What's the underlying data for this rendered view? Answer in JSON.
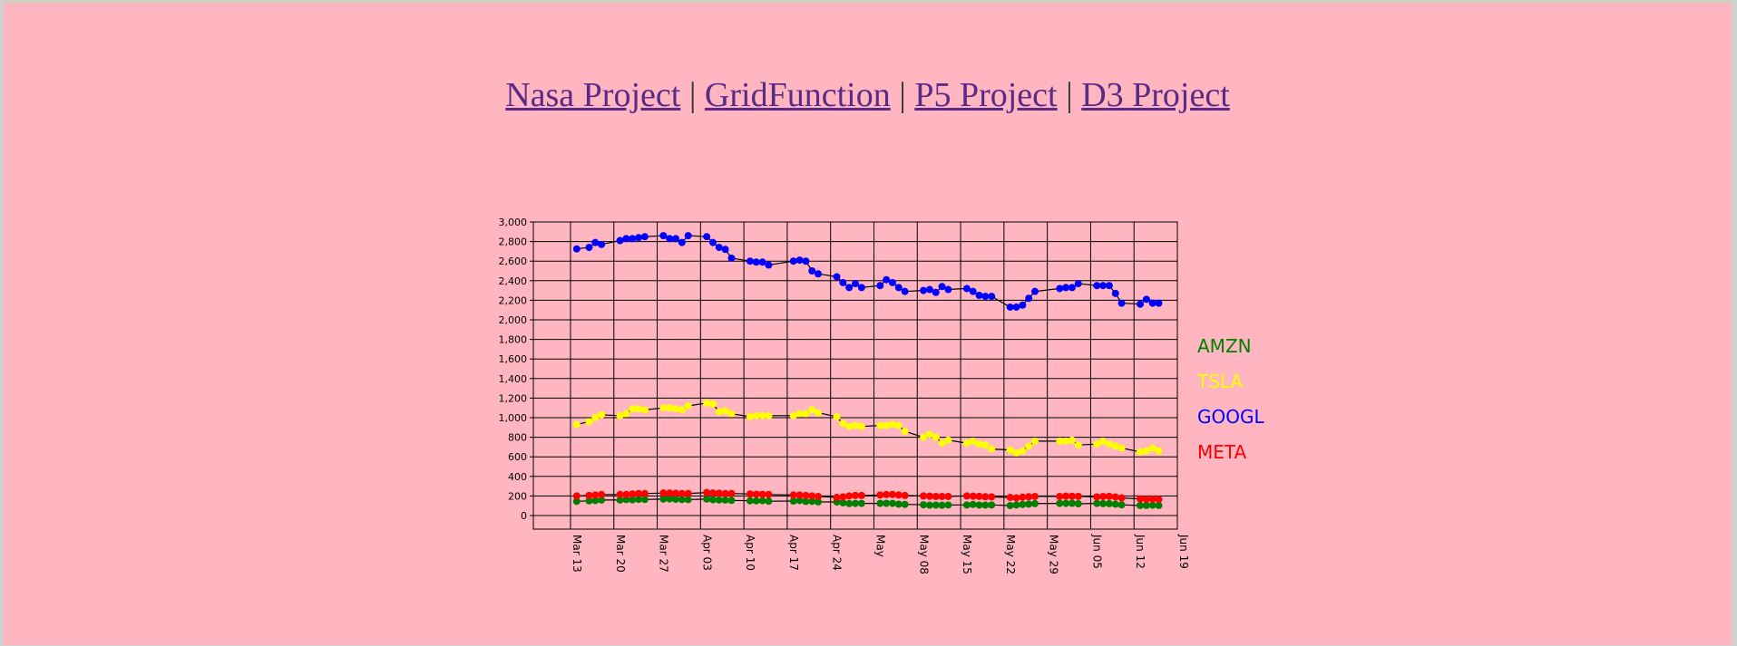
{
  "nav": {
    "links": [
      "Nasa Project",
      "GridFunction",
      "P5 Project",
      "D3 Project"
    ],
    "separator": "|"
  },
  "colors": {
    "background": "#ffb6c1",
    "link": "#5a2a86",
    "AMZN": "#008000",
    "TSLA": "#ffff00",
    "GOOGL": "#0000ff",
    "META": "#ff0000"
  },
  "chart_data": {
    "type": "line",
    "title": "",
    "xlabel": "",
    "ylabel": "",
    "ylim": [
      0,
      3000
    ],
    "xlim": [
      "2022-03-07",
      "2022-06-19"
    ],
    "y_ticks": [
      "0",
      "200",
      "400",
      "600",
      "800",
      "1,000",
      "1,200",
      "1,400",
      "1,600",
      "1,800",
      "2,000",
      "2,200",
      "2,400",
      "2,600",
      "2,800",
      "3,000"
    ],
    "x_ticks": [
      {
        "label": "Mar 13",
        "date": "2022-03-13"
      },
      {
        "label": "Mar 20",
        "date": "2022-03-20"
      },
      {
        "label": "Mar 27",
        "date": "2022-03-27"
      },
      {
        "label": "Apr 03",
        "date": "2022-04-03"
      },
      {
        "label": "Apr 10",
        "date": "2022-04-10"
      },
      {
        "label": "Apr 17",
        "date": "2022-04-17"
      },
      {
        "label": "Apr 24",
        "date": "2022-04-24"
      },
      {
        "label": "May",
        "date": "2022-05-01"
      },
      {
        "label": "May 08",
        "date": "2022-05-08"
      },
      {
        "label": "May 15",
        "date": "2022-05-15"
      },
      {
        "label": "May 22",
        "date": "2022-05-22"
      },
      {
        "label": "May 29",
        "date": "2022-05-29"
      },
      {
        "label": "Jun 05",
        "date": "2022-06-05"
      },
      {
        "label": "Jun 12",
        "date": "2022-06-12"
      },
      {
        "label": "Jun 19",
        "date": "2022-06-19"
      }
    ],
    "legend_position": "right",
    "grid": true,
    "x": [
      "2022-03-14",
      "2022-03-16",
      "2022-03-17",
      "2022-03-18",
      "2022-03-21",
      "2022-03-22",
      "2022-03-23",
      "2022-03-24",
      "2022-03-25",
      "2022-03-28",
      "2022-03-29",
      "2022-03-30",
      "2022-03-31",
      "2022-04-01",
      "2022-04-04",
      "2022-04-05",
      "2022-04-06",
      "2022-04-07",
      "2022-04-08",
      "2022-04-11",
      "2022-04-12",
      "2022-04-13",
      "2022-04-14",
      "2022-04-18",
      "2022-04-19",
      "2022-04-20",
      "2022-04-21",
      "2022-04-22",
      "2022-04-25",
      "2022-04-26",
      "2022-04-27",
      "2022-04-28",
      "2022-04-29",
      "2022-05-02",
      "2022-05-03",
      "2022-05-04",
      "2022-05-05",
      "2022-05-06",
      "2022-05-09",
      "2022-05-10",
      "2022-05-11",
      "2022-05-12",
      "2022-05-13",
      "2022-05-16",
      "2022-05-17",
      "2022-05-18",
      "2022-05-19",
      "2022-05-20",
      "2022-05-23",
      "2022-05-24",
      "2022-05-25",
      "2022-05-26",
      "2022-05-27",
      "2022-05-31",
      "2022-06-01",
      "2022-06-02",
      "2022-06-03",
      "2022-06-06",
      "2022-06-07",
      "2022-06-08",
      "2022-06-09",
      "2022-06-10",
      "2022-06-13",
      "2022-06-14",
      "2022-06-15",
      "2022-06-16"
    ],
    "series": [
      {
        "name": "AMZN",
        "values": [
          145,
          150,
          153,
          158,
          158,
          163,
          161,
          165,
          164,
          168,
          170,
          166,
          163,
          163,
          168,
          162,
          159,
          158,
          155,
          151,
          150,
          152,
          146,
          148,
          153,
          144,
          145,
          140,
          139,
          130,
          122,
          124,
          124,
          124,
          125,
          124,
          116,
          114,
          110,
          106,
          107,
          105,
          108,
          108,
          114,
          107,
          107,
          108,
          102,
          108,
          113,
          117,
          122,
          124,
          124,
          125,
          120,
          124,
          122,
          121,
          116,
          109,
          103,
          103,
          106,
          103
        ]
      },
      {
        "name": "TSLA",
        "values": [
          930,
          960,
          1000,
          1030,
          1020,
          1040,
          1090,
          1090,
          1080,
          1100,
          1100,
          1090,
          1080,
          1120,
          1150,
          1140,
          1060,
          1070,
          1040,
          1010,
          1020,
          1020,
          1020,
          1020,
          1040,
          1040,
          1080,
          1050,
          1010,
          940,
          910,
          920,
          910,
          920,
          920,
          930,
          920,
          860,
          800,
          830,
          800,
          740,
          770,
          740,
          760,
          730,
          720,
          680,
          670,
          640,
          660,
          710,
          760,
          760,
          760,
          770,
          720,
          730,
          760,
          730,
          710,
          690,
          650,
          660,
          690,
          660
        ]
      },
      {
        "name": "GOOGL",
        "values": [
          2725,
          2740,
          2790,
          2770,
          2810,
          2830,
          2830,
          2840,
          2850,
          2860,
          2830,
          2830,
          2790,
          2860,
          2850,
          2790,
          2740,
          2720,
          2630,
          2600,
          2590,
          2590,
          2560,
          2600,
          2610,
          2600,
          2500,
          2470,
          2440,
          2380,
          2330,
          2370,
          2330,
          2350,
          2410,
          2380,
          2330,
          2290,
          2300,
          2310,
          2280,
          2340,
          2310,
          2320,
          2290,
          2250,
          2240,
          2240,
          2130,
          2130,
          2150,
          2220,
          2290,
          2320,
          2330,
          2330,
          2370,
          2350,
          2350,
          2350,
          2270,
          2170,
          2160,
          2210,
          2170,
          2170
        ]
      },
      {
        "name": "META",
        "values": [
          200,
          205,
          210,
          215,
          215,
          215,
          220,
          225,
          225,
          230,
          230,
          228,
          225,
          225,
          235,
          230,
          228,
          225,
          225,
          220,
          218,
          217,
          215,
          210,
          210,
          205,
          200,
          195,
          185,
          190,
          200,
          205,
          205,
          210,
          215,
          215,
          210,
          205,
          200,
          198,
          195,
          195,
          195,
          200,
          198,
          196,
          192,
          190,
          185,
          180,
          188,
          192,
          195,
          195,
          198,
          197,
          196,
          190,
          195,
          196,
          190,
          180,
          170,
          165,
          168,
          165
        ]
      }
    ]
  }
}
